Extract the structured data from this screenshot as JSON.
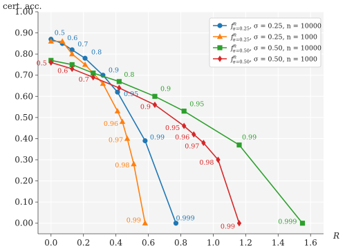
{
  "chart_data": {
    "type": "line",
    "ylabel": "cert. acc.",
    "xlabel": "R",
    "xlim": [
      -0.08,
      1.68
    ],
    "ylim": [
      -0.05,
      1.0
    ],
    "xticks": [
      "0.0",
      "0.2",
      "0.4",
      "0.6",
      "0.8",
      "1.0",
      "1.2",
      "1.4",
      "1.6"
    ],
    "xtick_values": [
      0.0,
      0.2,
      0.4,
      0.6,
      0.8,
      1.0,
      1.2,
      1.4,
      1.6
    ],
    "yticks": [
      "0.00",
      "0.10",
      "0.20",
      "0.30",
      "0.40",
      "0.50",
      "0.60",
      "0.70",
      "0.80",
      "0.90",
      "1.00"
    ],
    "ytick_values": [
      0.0,
      0.1,
      0.2,
      0.3,
      0.4,
      0.5,
      0.6,
      0.7,
      0.8,
      0.9,
      1.0
    ],
    "grid": true,
    "legend_position": "top-right",
    "series": [
      {
        "name": "f^n_{σ=0.25}, σ = 0.25, n = 10000",
        "legend_parts": {
          "f": "f",
          "sup": "n",
          "sub": "σ=0.25",
          "rest": ", σ = 0.25, n = 10000"
        },
        "color": "#1f77b4",
        "marker": "circle",
        "points": [
          {
            "x": 0.0,
            "y": 0.87,
            "label": "0.5"
          },
          {
            "x": 0.07,
            "y": 0.85,
            "label": "0.6"
          },
          {
            "x": 0.13,
            "y": 0.82,
            "label": "0.7"
          },
          {
            "x": 0.21,
            "y": 0.78,
            "label": "0.8"
          },
          {
            "x": 0.32,
            "y": 0.7,
            "label": "0.9"
          },
          {
            "x": 0.41,
            "y": 0.62,
            "label": "0.95"
          },
          {
            "x": 0.58,
            "y": 0.39,
            "label": "0.99"
          },
          {
            "x": 0.77,
            "y": 0.0,
            "label": "0.999"
          }
        ]
      },
      {
        "name": "f^n_{σ=0.25}, σ = 0.25, n = 1000",
        "legend_parts": {
          "f": "f",
          "sup": "n",
          "sub": "σ=0.25",
          "rest": ", σ = 0.25, n = 1000"
        },
        "color": "#ff7f0e",
        "marker": "triangle",
        "points": [
          {
            "x": 0.0,
            "y": 0.86,
            "label": ""
          },
          {
            "x": 0.07,
            "y": 0.86,
            "label": ""
          },
          {
            "x": 0.13,
            "y": 0.8,
            "label": ""
          },
          {
            "x": 0.21,
            "y": 0.75,
            "label": ""
          },
          {
            "x": 0.32,
            "y": 0.66,
            "label": ""
          },
          {
            "x": 0.41,
            "y": 0.53,
            "label": ""
          },
          {
            "x": 0.44,
            "y": 0.48,
            "label": "0.96"
          },
          {
            "x": 0.47,
            "y": 0.4,
            "label": "0.97"
          },
          {
            "x": 0.51,
            "y": 0.28,
            "label": "0.98"
          },
          {
            "x": 0.58,
            "y": 0.0,
            "label": "0.99"
          }
        ]
      },
      {
        "name": "f^n_{σ=0.50}, σ = 0.50, n = 10000",
        "legend_parts": {
          "f": "f",
          "sup": "n",
          "sub": "σ=0.50",
          "rest": ", σ = 0.50, n = 10000"
        },
        "color": "#2ca02c",
        "marker": "square",
        "points": [
          {
            "x": 0.0,
            "y": 0.77,
            "label": ""
          },
          {
            "x": 0.13,
            "y": 0.75,
            "label": ""
          },
          {
            "x": 0.26,
            "y": 0.71,
            "label": ""
          },
          {
            "x": 0.42,
            "y": 0.67,
            "label": "0.8"
          },
          {
            "x": 0.64,
            "y": 0.6,
            "label": "0.9"
          },
          {
            "x": 0.82,
            "y": 0.53,
            "label": "0.95"
          },
          {
            "x": 1.16,
            "y": 0.37,
            "label": "0.99"
          },
          {
            "x": 1.55,
            "y": 0.0,
            "label": "0.999"
          }
        ]
      },
      {
        "name": "f^n_{σ=0.50}, σ = 0.50, n = 1000",
        "legend_parts": {
          "f": "f",
          "sup": "n",
          "sub": "σ=0.50",
          "rest": ", σ = 0.50, n = 1000"
        },
        "color": "#d62728",
        "marker": "diamond",
        "points": [
          {
            "x": 0.0,
            "y": 0.76,
            "label": "0.5"
          },
          {
            "x": 0.13,
            "y": 0.73,
            "label": "0.6"
          },
          {
            "x": 0.26,
            "y": 0.69,
            "label": "0.7"
          },
          {
            "x": 0.42,
            "y": 0.64,
            "label": ""
          },
          {
            "x": 0.64,
            "y": 0.56,
            "label": "0.9"
          },
          {
            "x": 0.82,
            "y": 0.46,
            "label": "0.95"
          },
          {
            "x": 0.88,
            "y": 0.42,
            "label": "0.96"
          },
          {
            "x": 0.94,
            "y": 0.38,
            "label": "0.97"
          },
          {
            "x": 1.03,
            "y": 0.3,
            "label": "0.98"
          },
          {
            "x": 1.16,
            "y": 0.0,
            "label": "0.99"
          }
        ]
      }
    ]
  }
}
